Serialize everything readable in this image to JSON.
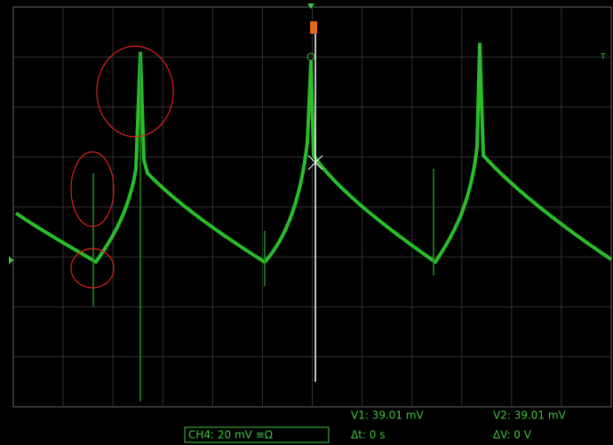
{
  "channel_label": "CH4: 20 mV ≅Ω",
  "cursors": {
    "v1": "V1: 39.01 mV",
    "v2": "V2: 39.01 mV",
    "dt": "Δt: 0 s",
    "dv": "ΔV: 0 V"
  },
  "trigger_marker": "T"
}
